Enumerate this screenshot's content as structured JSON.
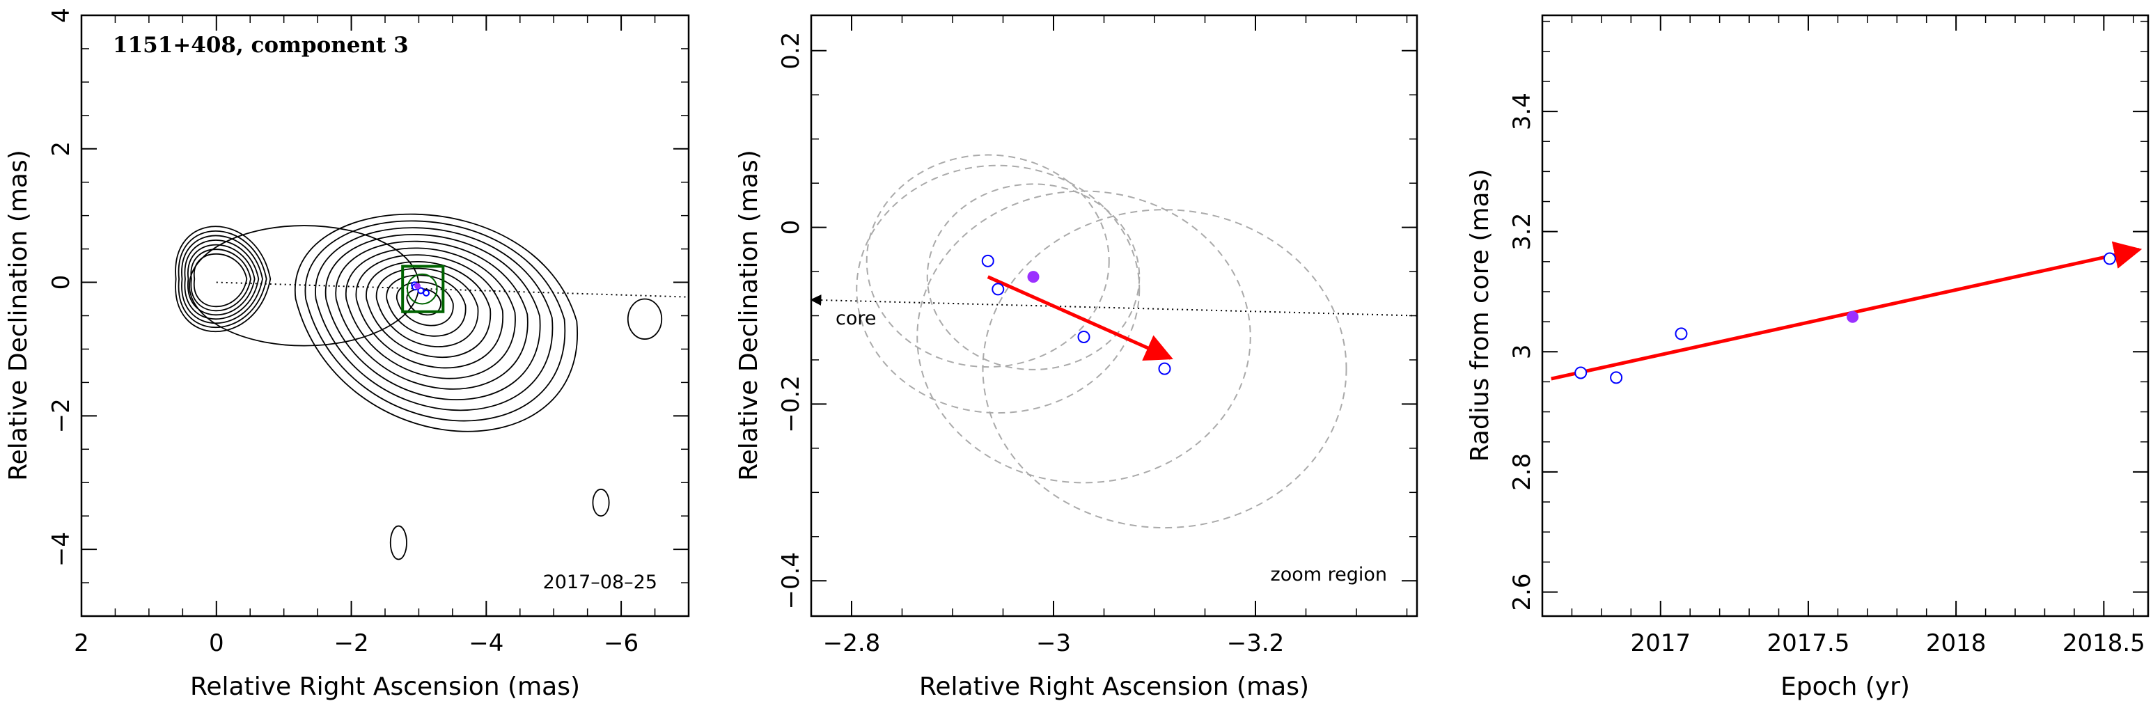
{
  "chart_data": [
    {
      "type": "scatter",
      "panel": "map",
      "title": "1151+408, component 3",
      "date_label": "2017–08–25",
      "xlabel": "Relative Right Ascension (mas)",
      "ylabel": "Relative Declination (mas)",
      "xlim": [
        2,
        -7
      ],
      "ylim": [
        -5,
        4
      ],
      "xticks": [
        2,
        0,
        -2,
        -4,
        -6
      ],
      "yticks": [
        4,
        2,
        0,
        -2,
        -4
      ],
      "xtick_labels": [
        "2",
        "0",
        "−2",
        "−4",
        "−6"
      ],
      "ytick_labels": [
        "4",
        "2",
        "0",
        "−2",
        "−4"
      ],
      "grid": false,
      "contours": "radio intensity contours",
      "jet_axis": {
        "from": [
          0,
          0
        ],
        "to": [
          -7,
          -0.22
        ],
        "style": "dotted"
      },
      "zoom_box": {
        "x": [
          -2.76,
          -3.36
        ],
        "y": [
          0.24,
          -0.44
        ],
        "color": "#006400"
      },
      "series": [
        {
          "marker": "open circle",
          "color": "#0000ff",
          "x": [
            -2.935,
            -2.945,
            -3.03,
            -3.11
          ],
          "y": [
            -0.038,
            -0.07,
            -0.124,
            -0.16
          ]
        },
        {
          "marker": "filled circle",
          "color": "#9b30ff",
          "x": [
            -2.98
          ],
          "y": [
            -0.056
          ]
        }
      ]
    },
    {
      "type": "scatter",
      "panel": "zoom",
      "label": "zoom region",
      "core_label": "core",
      "xlabel": "Relative Right Ascension (mas)",
      "ylabel": "Relative Declination (mas)",
      "xlim": [
        -2.76,
        -3.36
      ],
      "ylim": [
        -0.44,
        0.24
      ],
      "xticks": [
        -2.8,
        -3,
        -3.2
      ],
      "yticks": [
        0.2,
        0,
        -0.2,
        -0.4
      ],
      "xtick_labels": [
        "−2.8",
        "−3",
        "−3.2"
      ],
      "ytick_labels": [
        "0.2",
        "0",
        "−0.2",
        "−0.4"
      ],
      "grid": false,
      "jet_axis": {
        "from": [
          -3.36,
          -0.1
        ],
        "to": [
          -2.76,
          -0.082
        ],
        "style": "dotted"
      },
      "error_circles": [
        {
          "x": -2.935,
          "y": -0.038,
          "r": 0.12
        },
        {
          "x": -2.945,
          "y": -0.07,
          "r": 0.14
        },
        {
          "x": -3.03,
          "y": -0.124,
          "r": 0.165
        },
        {
          "x": -2.98,
          "y": -0.056,
          "r": 0.105
        },
        {
          "x": -3.11,
          "y": -0.16,
          "r": 0.18
        }
      ],
      "motion_vector": {
        "from": [
          -2.935,
          -0.056
        ],
        "to": [
          -3.116,
          -0.148
        ],
        "color": "#ff0000"
      },
      "series": [
        {
          "marker": "open circle",
          "color": "#0000ff",
          "x": [
            -2.935,
            -2.945,
            -3.03,
            -3.11
          ],
          "y": [
            -0.038,
            -0.07,
            -0.124,
            -0.16
          ]
        },
        {
          "marker": "filled circle",
          "color": "#9b30ff",
          "x": [
            -2.98
          ],
          "y": [
            -0.056
          ]
        }
      ]
    },
    {
      "type": "scatter",
      "panel": "radius",
      "xlabel": "Epoch (yr)",
      "ylabel": "Radius from core (mas)",
      "xlim": [
        16.6,
        18.65
      ],
      "ylim": [
        2.56,
        3.56
      ],
      "xticks": [
        17,
        17.5,
        18,
        18.5
      ],
      "yticks": [
        2.6,
        2.8,
        3,
        3.2,
        3.4
      ],
      "xtick_labels": [
        "2017",
        "2017.5",
        "2018",
        "2018.5"
      ],
      "ytick_labels": [
        "2.6",
        "2.8",
        "3",
        "3.2",
        "3.4"
      ],
      "grid": false,
      "fit_line": {
        "from": [
          16.63,
          2.955
        ],
        "to": [
          18.62,
          3.17
        ],
        "color": "#ff0000"
      },
      "series": [
        {
          "marker": "open circle",
          "color": "#0000ff",
          "x": [
            16.73,
            16.85,
            17.07,
            18.52
          ],
          "y": [
            2.965,
            2.957,
            3.03,
            3.155
          ]
        },
        {
          "marker": "filled circle",
          "color": "#9b30ff",
          "x": [
            17.65
          ],
          "y": [
            3.058
          ]
        }
      ]
    }
  ]
}
